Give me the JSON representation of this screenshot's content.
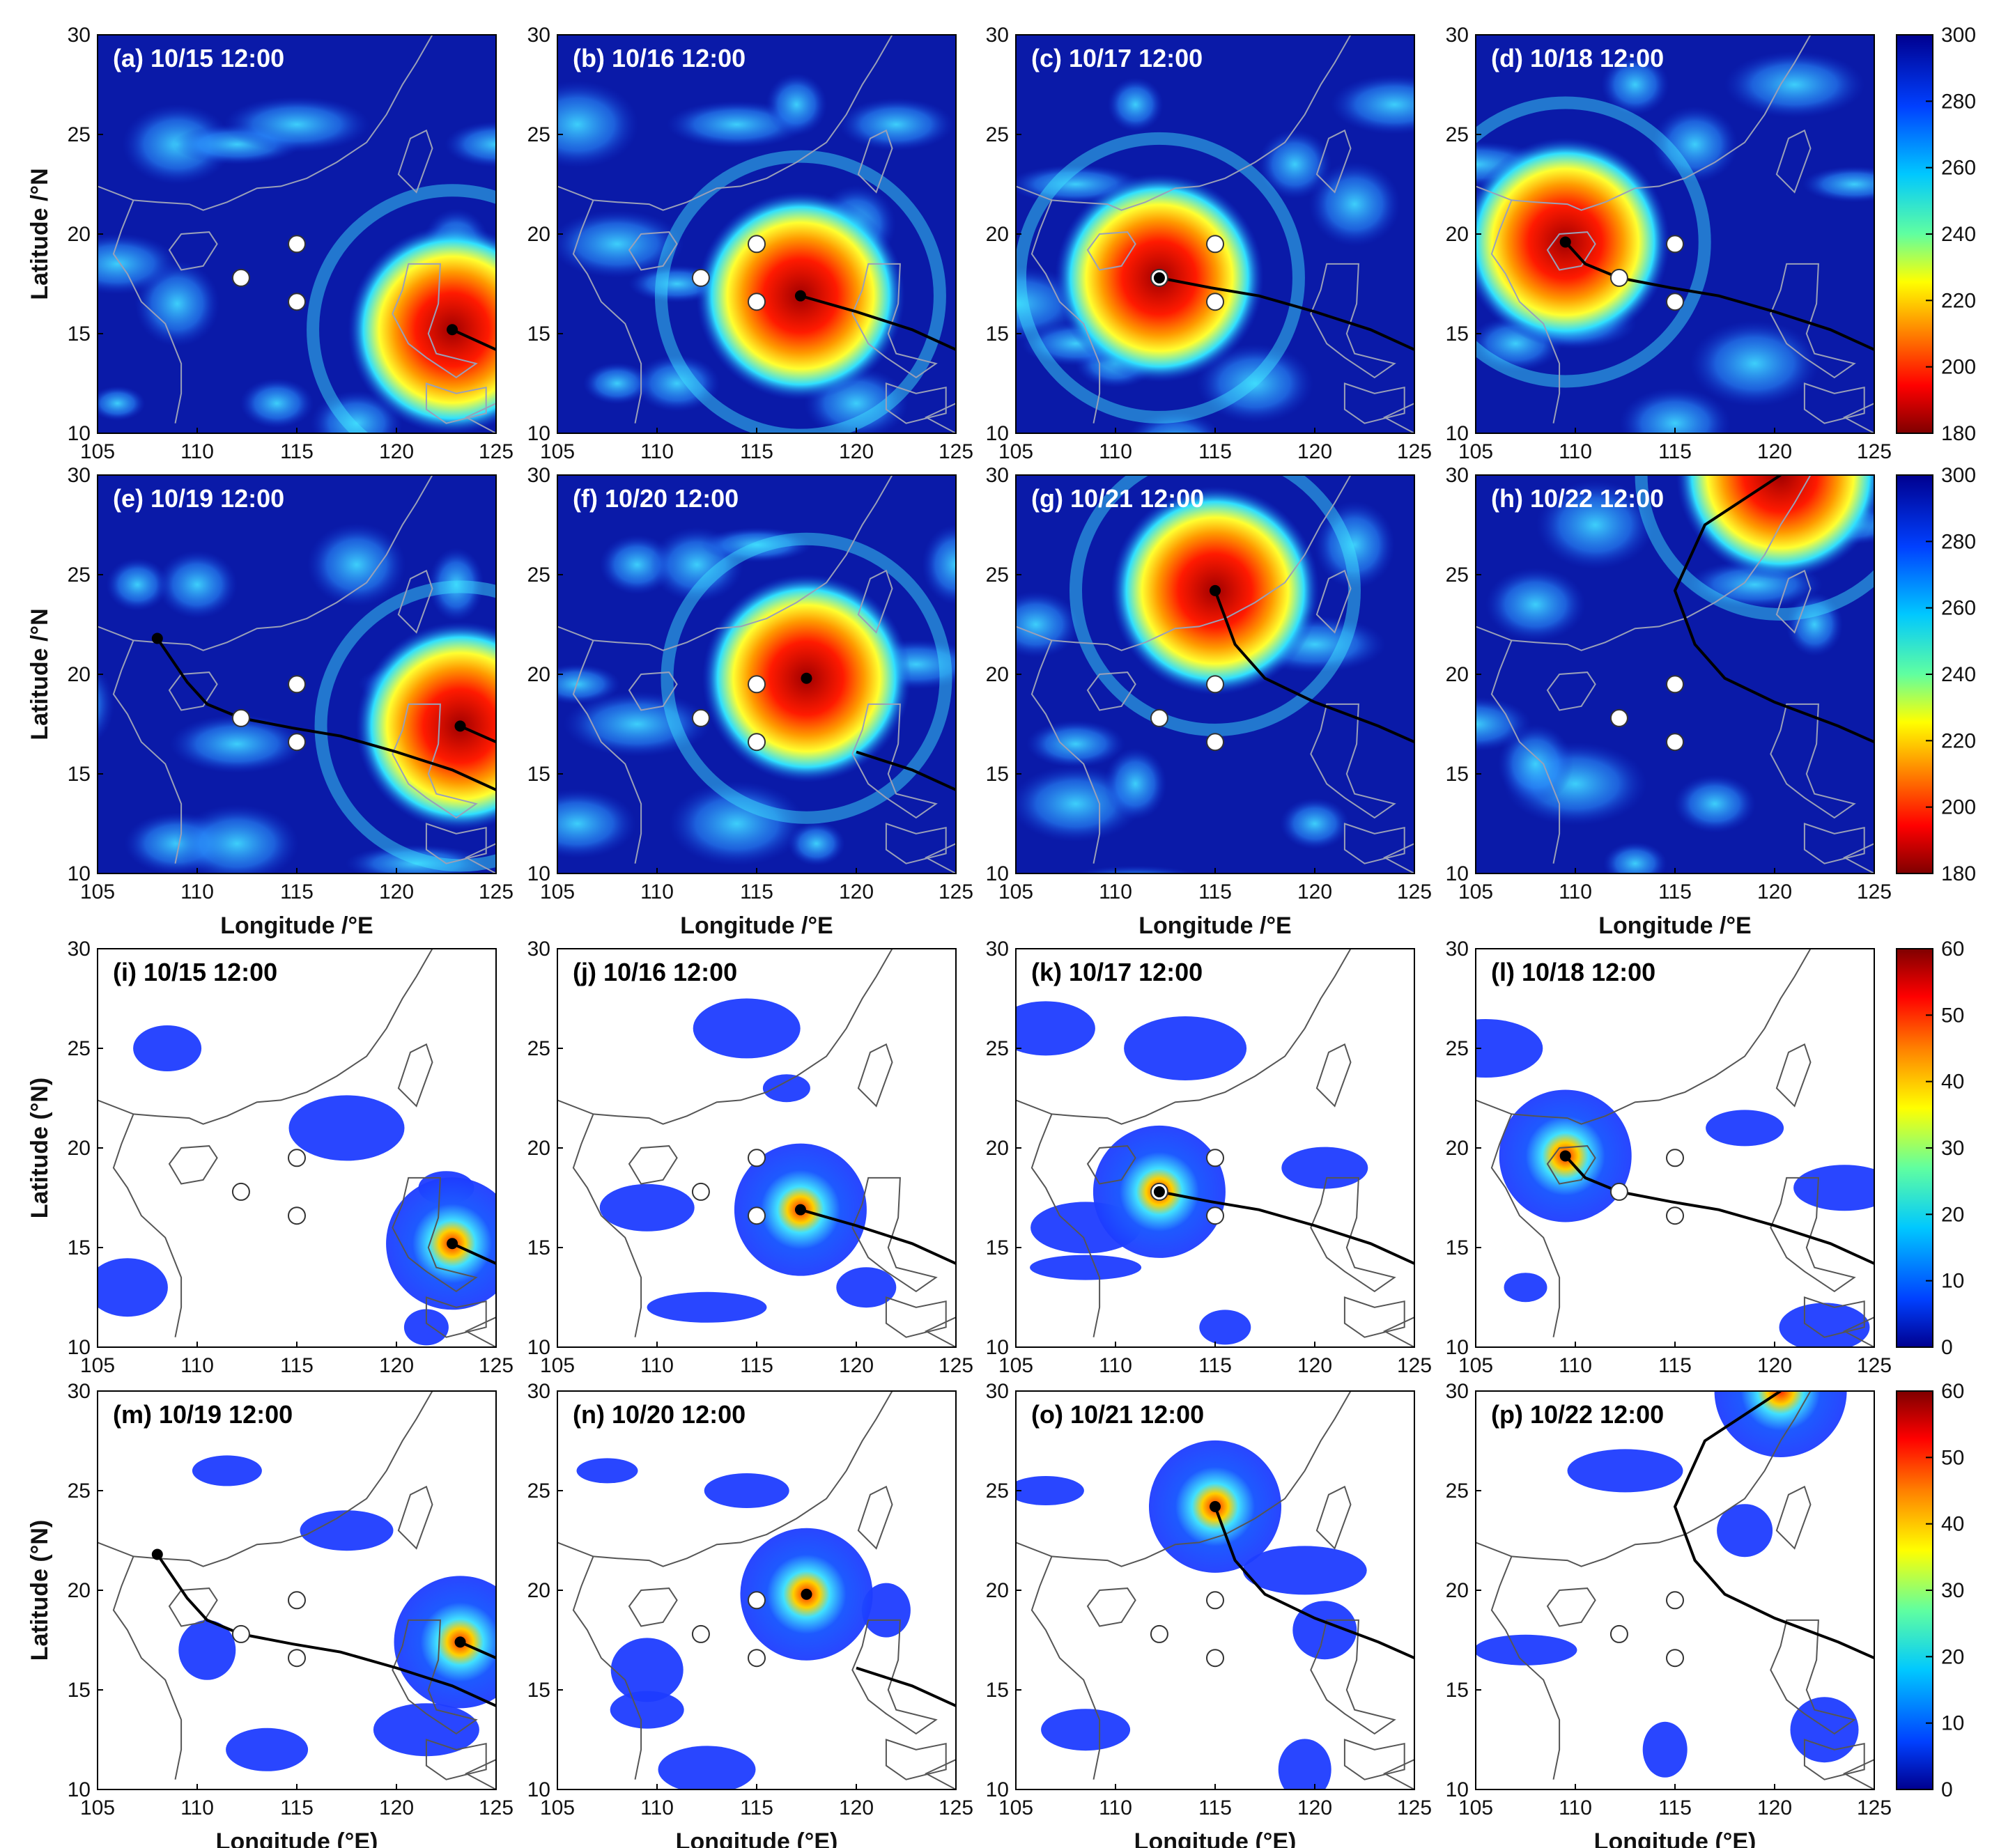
{
  "colors": {
    "track": "#000000",
    "station_fill": "#ffffff",
    "station_stroke": "#333333",
    "coast_ir": "#9aa0b8",
    "coast_rain": "#555555",
    "ir_background": "#0a1aa8",
    "rain_background": "#ffffff",
    "title_ir": "#ffffff",
    "title_rain": "#000000"
  },
  "axes": {
    "x_ticks": [
      "105",
      "110",
      "115",
      "120",
      "125"
    ],
    "y_ticks": [
      "10",
      "15",
      "20",
      "25",
      "30"
    ],
    "x_range": [
      105,
      125
    ],
    "y_range": [
      10,
      30
    ],
    "ir_xlabel": "Longitude /°E",
    "ir_ylabel": "Latitude /°N",
    "rain_xlabel": "Longitude (°E)",
    "rain_ylabel": "Latitude (°N)"
  },
  "stations": [
    {
      "lon": 112.2,
      "lat": 17.8
    },
    {
      "lon": 115.0,
      "lat": 19.5
    },
    {
      "lon": 115.0,
      "lat": 16.6
    }
  ],
  "track": [
    {
      "lon": 125.0,
      "lat": 14.2
    },
    {
      "lon": 122.8,
      "lat": 15.2
    },
    {
      "lon": 120.0,
      "lat": 16.1
    },
    {
      "lon": 117.2,
      "lat": 16.9
    },
    {
      "lon": 114.8,
      "lat": 17.3
    },
    {
      "lon": 112.2,
      "lat": 17.8
    },
    {
      "lon": 110.5,
      "lat": 18.5
    },
    {
      "lon": 109.5,
      "lat": 19.6
    },
    {
      "lon": 108.0,
      "lat": 21.8
    }
  ],
  "track_east": [
    {
      "lon": 125.0,
      "lat": 16.6
    },
    {
      "lon": 123.2,
      "lat": 17.4
    },
    {
      "lon": 120.0,
      "lat": 18.6
    },
    {
      "lon": 117.5,
      "lat": 19.8
    },
    {
      "lon": 116.0,
      "lat": 21.5
    },
    {
      "lon": 115.0,
      "lat": 24.2
    },
    {
      "lon": 116.5,
      "lat": 27.5
    },
    {
      "lon": 120.3,
      "lat": 30.0
    }
  ],
  "colorbars": {
    "ir": {
      "ticks": [
        "300",
        "280",
        "260",
        "240",
        "220",
        "200",
        "180"
      ]
    },
    "rain": {
      "ticks": [
        "60",
        "50",
        "40",
        "30",
        "20",
        "10",
        "0"
      ]
    }
  },
  "panels": [
    {
      "id": "a",
      "title": "(a) 10/15 12:00",
      "kind": "ir",
      "center": {
        "lon": 122.8,
        "lat": 15.2
      }
    },
    {
      "id": "b",
      "title": "(b) 10/16 12:00",
      "kind": "ir",
      "center": {
        "lon": 117.2,
        "lat": 16.9
      }
    },
    {
      "id": "c",
      "title": "(c) 10/17 12:00",
      "kind": "ir",
      "center": {
        "lon": 112.2,
        "lat": 17.8
      }
    },
    {
      "id": "d",
      "title": "(d) 10/18 12:00",
      "kind": "ir",
      "center": {
        "lon": 109.5,
        "lat": 19.6
      }
    },
    {
      "id": "e",
      "title": "(e) 10/19 12:00",
      "kind": "ir",
      "center": {
        "lon": 123.2,
        "lat": 17.4
      },
      "track_start": {
        "lon": 108.0,
        "lat": 21.8
      }
    },
    {
      "id": "f",
      "title": "(f) 10/20 12:00",
      "kind": "ir",
      "center": {
        "lon": 117.5,
        "lat": 19.8
      }
    },
    {
      "id": "g",
      "title": "(g) 10/21 12:00",
      "kind": "ir",
      "center": {
        "lon": 115.0,
        "lat": 24.2
      }
    },
    {
      "id": "h",
      "title": "(h) 10/22 12:00",
      "kind": "ir",
      "center": {
        "lon": 120.3,
        "lat": 30.0
      }
    },
    {
      "id": "i",
      "title": "(i) 10/15 12:00",
      "kind": "rain",
      "center": {
        "lon": 122.8,
        "lat": 15.2
      }
    },
    {
      "id": "j",
      "title": "(j) 10/16 12:00",
      "kind": "rain",
      "center": {
        "lon": 117.2,
        "lat": 16.9
      }
    },
    {
      "id": "k",
      "title": "(k) 10/17 12:00",
      "kind": "rain",
      "center": {
        "lon": 112.2,
        "lat": 17.8
      }
    },
    {
      "id": "l",
      "title": "(l) 10/18 12:00",
      "kind": "rain",
      "center": {
        "lon": 109.5,
        "lat": 19.6
      }
    },
    {
      "id": "m",
      "title": "(m) 10/19 12:00",
      "kind": "rain",
      "center": {
        "lon": 123.2,
        "lat": 17.4
      },
      "track_start": {
        "lon": 108.0,
        "lat": 21.8
      }
    },
    {
      "id": "n",
      "title": "(n) 10/20 12:00",
      "kind": "rain",
      "center": {
        "lon": 117.5,
        "lat": 19.8
      }
    },
    {
      "id": "o",
      "title": "(o) 10/21 12:00",
      "kind": "rain",
      "center": {
        "lon": 115.0,
        "lat": 24.2
      }
    },
    {
      "id": "p",
      "title": "(p) 10/22 12:00",
      "kind": "rain",
      "center": {
        "lon": 120.3,
        "lat": 30.0
      }
    }
  ]
}
